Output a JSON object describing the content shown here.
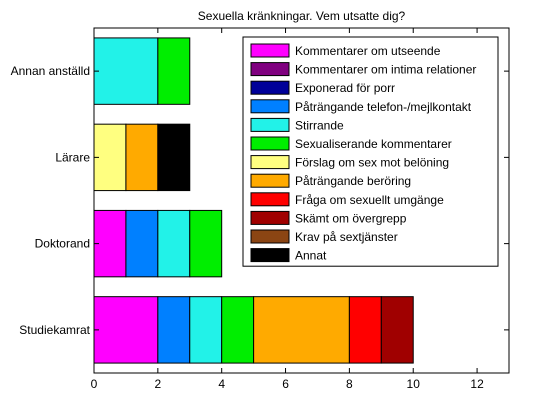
{
  "chart_data": {
    "type": "bar",
    "orientation": "horizontal",
    "stacked": true,
    "title": "Sexuella kränkningar. Vem utsatte dig?",
    "xlabel": "",
    "ylabel": "",
    "xlim": [
      0,
      13
    ],
    "xticks": [
      0,
      2,
      4,
      6,
      8,
      10,
      12
    ],
    "categories": [
      "Studiekamrat",
      "Doktorand",
      "Lärare",
      "Annan anställd"
    ],
    "series": [
      {
        "name": "Kommentarer om utseende",
        "color": "#ff00ff",
        "values": [
          2,
          1,
          0,
          0
        ]
      },
      {
        "name": "Kommentarer om intima relationer",
        "color": "#800080",
        "values": [
          0,
          0,
          0,
          0
        ]
      },
      {
        "name": "Exponerad för porr",
        "color": "#000099",
        "values": [
          0,
          0,
          0,
          0
        ]
      },
      {
        "name": "Påträngande telefon-/mejlkontakt",
        "color": "#0080ff",
        "values": [
          1,
          1,
          0,
          0
        ]
      },
      {
        "name": "Stirrande",
        "color": "#22f2e8",
        "values": [
          1,
          1,
          0,
          2
        ]
      },
      {
        "name": "Sexualiserande kommentarer",
        "color": "#00ee00",
        "values": [
          1,
          1,
          0,
          1
        ]
      },
      {
        "name": "Förslag om sex mot belöning",
        "color": "#ffff80",
        "values": [
          0,
          0,
          1,
          0
        ]
      },
      {
        "name": "Påträngande beröring",
        "color": "#ffaa00",
        "values": [
          3,
          0,
          1,
          0
        ]
      },
      {
        "name": "Fråga om sexuellt umgänge",
        "color": "#ff0000",
        "values": [
          1,
          0,
          0,
          0
        ]
      },
      {
        "name": "Skämt om övergrepp",
        "color": "#a00000",
        "values": [
          1,
          0,
          0,
          0
        ]
      },
      {
        "name": "Krav på sextjänster",
        "color": "#8b4513",
        "values": [
          0,
          0,
          0,
          0
        ]
      },
      {
        "name": "Annat",
        "color": "#000000",
        "values": [
          0,
          0,
          1,
          0
        ]
      }
    ],
    "grid": false,
    "legend_position": "top-right"
  }
}
